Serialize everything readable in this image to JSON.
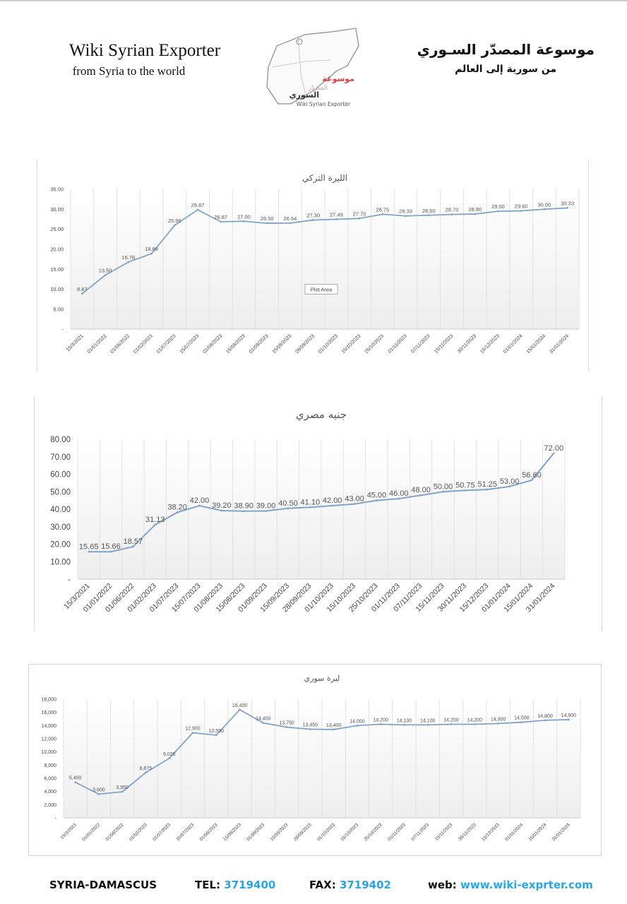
{
  "header": {
    "title_en": "Wiki Syrian Exporter",
    "subtitle_en": "from Syria to the world",
    "title_ar": "موسوعة المصدّر السـوري",
    "subtitle_ar": "من سورية إلى العالم",
    "logo_text_ar_red": "موسوعة",
    "logo_text_ar_red2": "المصدّر",
    "logo_text_ar": "السوري",
    "logo_text_en": "Wiki Syrian Exporter"
  },
  "footer": {
    "city": "SYRIA-DAMASCUS",
    "tel_label": "TEL:",
    "tel_value": "3719400",
    "fax_label": "FAX:",
    "fax_value": "3719402",
    "web_label": "web:",
    "web_value": "www.wiki-exprter.com"
  },
  "chart_data": [
    {
      "type": "line",
      "title": "الليرة التركي",
      "annotation": "Plot Area",
      "categories": [
        "15/3/2021",
        "01/01/2022",
        "01/06/2022",
        "01/02/2023",
        "01/07/2023",
        "15/07/2023",
        "01/08/2023",
        "15/08/2023",
        "01/09/2023",
        "15/09/2023",
        "28/09/2023",
        "01/10/2023",
        "15/10/2023",
        "25/10/2023",
        "01/11/2023",
        "07/11/2023",
        "15/11/2023",
        "30/11/2023",
        "15/12/2023",
        "01/01/2024",
        "15/01/2024",
        "31/01/2024"
      ],
      "values": [
        8.87,
        13.5,
        16.78,
        18.89,
        25.96,
        29.87,
        26.87,
        27.0,
        26.5,
        26.54,
        27.3,
        27.49,
        27.7,
        28.75,
        28.33,
        28.5,
        28.7,
        28.8,
        29.5,
        29.6,
        30.0,
        30.33
      ],
      "value_labels": [
        "8.87",
        "13.50",
        "16.78",
        "18.89",
        "25.96",
        "29.87",
        "26.87",
        "27.00",
        "26.50",
        "26.54",
        "27.30",
        "27.49",
        "27.70",
        "28.75",
        "28.33",
        "28.50",
        "28.70",
        "28.80",
        "29.50",
        "29.60",
        "30.00",
        "30.33"
      ],
      "yticks": [
        "-",
        "5.00",
        "10.00",
        "15.00",
        "20.00",
        "25.00",
        "30.00",
        "35.00"
      ],
      "ylim": [
        0,
        35
      ],
      "grid": "vertical",
      "line_color": "#7fa5c9"
    },
    {
      "type": "line",
      "title": "جنيه مصري",
      "categories": [
        "15/3/2021",
        "01/01/2022",
        "01/06/2022",
        "01/02/2023",
        "01/07/2023",
        "15/07/2023",
        "01/08/2023",
        "15/08/2023",
        "01/09/2023",
        "15/09/2023",
        "28/09/2023",
        "01/10/2023",
        "15/10/2023",
        "25/10/2023",
        "01/11/2023",
        "07/11/2023",
        "15/11/2023",
        "30/11/2023",
        "15/12/2023",
        "01/01/2024",
        "15/01/2024",
        "31/01/2024"
      ],
      "values": [
        15.65,
        15.66,
        18.57,
        31.13,
        38.2,
        42.0,
        39.2,
        38.9,
        39.0,
        40.5,
        41.1,
        42.0,
        43.0,
        45.0,
        46.0,
        48.0,
        50.0,
        50.75,
        51.25,
        53.0,
        56.6,
        72.0
      ],
      "value_labels": [
        "15.65",
        "15.66",
        "18.57",
        "31.13",
        "38.20",
        "42.00",
        "39.20",
        "38.90",
        "39.00",
        "40.50",
        "41.10",
        "42.00",
        "43.00",
        "45.00",
        "46.00",
        "48.00",
        "50.00",
        "50.75",
        "51.25",
        "53.00",
        "56.60",
        "72.00"
      ],
      "yticks": [
        "-",
        "10.00",
        "20.00",
        "30.00",
        "40.00",
        "50.00",
        "60.00",
        "70.00",
        "80.00"
      ],
      "ylim": [
        0,
        80
      ],
      "grid": "vertical",
      "line_color": "#7fa5c9"
    },
    {
      "type": "line",
      "title": "ليرة سوري",
      "categories": [
        "15/3/2021",
        "01/01/2022",
        "01/06/2022",
        "01/02/2023",
        "01/07/2023",
        "15/07/2023",
        "01/08/2023",
        "15/08/2023",
        "01/09/2023",
        "15/09/2023",
        "28/09/2023",
        "01/10/2023",
        "15/10/2023",
        "25/10/2023",
        "01/11/2023",
        "07/11/2023",
        "15/11/2023",
        "30/11/2023",
        "15/12/2023",
        "01/01/2024",
        "15/01/2024",
        "31/01/2024"
      ],
      "values": [
        5400,
        3600,
        3950,
        6875,
        9025,
        12900,
        12550,
        16400,
        14400,
        13750,
        13450,
        13400,
        14000,
        14200,
        14100,
        14100,
        14200,
        14200,
        14300,
        14500,
        14800,
        14900
      ],
      "value_labels": [
        "5,400",
        "3,600",
        "3,950",
        "6,875",
        "9,025",
        "12,900",
        "12,550",
        "16,400",
        "14,400",
        "13,750",
        "13,450",
        "13,400",
        "14,000",
        "14,200",
        "14,100",
        "14,100",
        "14,200",
        "14,200",
        "14,300",
        "14,500",
        "14,800",
        "14,900"
      ],
      "yticks": [
        "-",
        "2,000",
        "4,000",
        "6,000",
        "8,000",
        "10,000",
        "12,000",
        "14,000",
        "16,000",
        "18,000"
      ],
      "ylim": [
        0,
        18000
      ],
      "grid": "vertical",
      "line_color": "#7fa5c9"
    }
  ]
}
